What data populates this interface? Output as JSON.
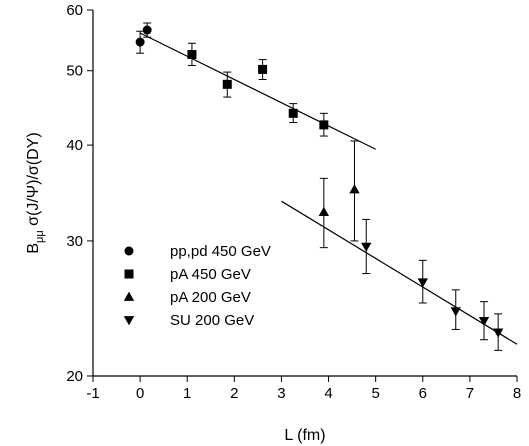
{
  "chart_data": {
    "type": "scatter",
    "title": "",
    "xlabel": "L (fm)",
    "ylabel": {
      "b": "B",
      "sub": "μμ",
      "rest": " σ(J/Ψ)/σ(DY)"
    },
    "xlim": [
      -1,
      8
    ],
    "ylim": [
      20,
      60
    ],
    "yscale": "log",
    "xticks": [
      -1,
      0,
      1,
      2,
      3,
      4,
      5,
      6,
      7,
      8
    ],
    "yticks": [
      20,
      30,
      40,
      50,
      60
    ],
    "grid": false,
    "legend_position": "lower-left",
    "series": [
      {
        "name": "pp,pd 450 GeV",
        "marker": "circle",
        "x": [
          0.0,
          0.15
        ],
        "y": [
          54.5,
          56.5
        ],
        "yerr_low": [
          1.8,
          1.2
        ],
        "yerr_high": [
          1.8,
          1.2
        ]
      },
      {
        "name": "pA 450 GeV",
        "marker": "square",
        "x": [
          1.1,
          1.85,
          2.6,
          3.25,
          3.9
        ],
        "y": [
          52.5,
          48.0,
          50.2,
          44.0,
          42.5
        ],
        "yerr_low": [
          1.7,
          1.8,
          1.5,
          1.2,
          1.4
        ],
        "yerr_high": [
          1.8,
          1.8,
          1.5,
          1.3,
          1.5
        ]
      },
      {
        "name": "pA 200 GeV",
        "marker": "triangle-up",
        "x": [
          3.9,
          4.55
        ],
        "y": [
          32.7,
          35.0
        ],
        "yerr_low": [
          3.3,
          5.0
        ],
        "yerr_high": [
          3.5,
          5.5
        ]
      },
      {
        "name": "SU 200 GeV",
        "marker": "triangle-down",
        "x": [
          4.8,
          6.0,
          6.7,
          7.3,
          7.6
        ],
        "y": [
          29.5,
          26.5,
          24.3,
          23.6,
          22.8
        ],
        "yerr_low": [
          2.3,
          1.6,
          1.3,
          1.3,
          1.2
        ],
        "yerr_high": [
          2.5,
          1.8,
          1.6,
          1.4,
          1.3
        ]
      }
    ],
    "fit_lines": [
      {
        "x": [
          0.0,
          5.0
        ],
        "y": [
          56.0,
          39.5
        ]
      },
      {
        "x": [
          3.0,
          8.0
        ],
        "y": [
          33.8,
          22.0
        ]
      }
    ]
  }
}
